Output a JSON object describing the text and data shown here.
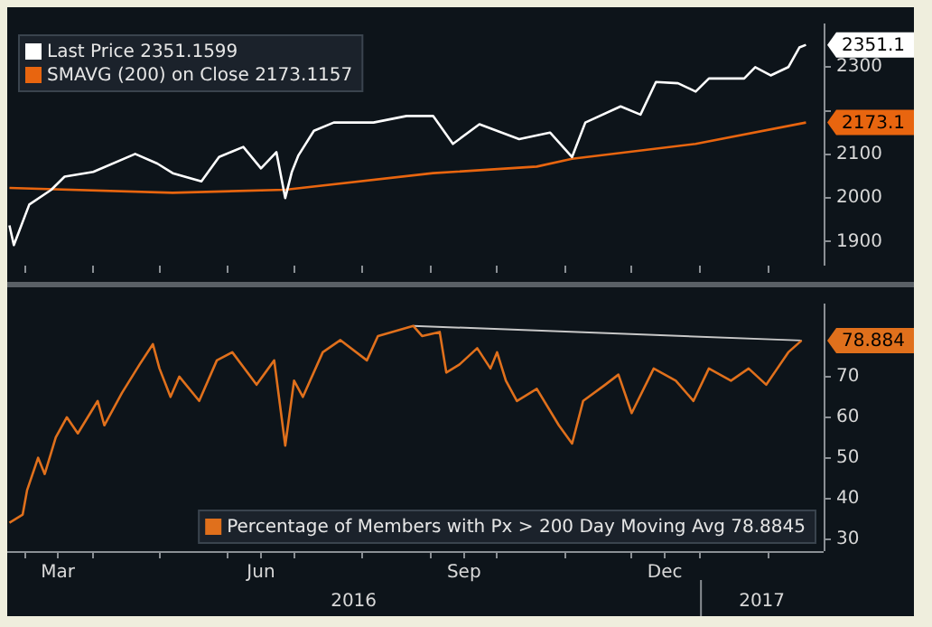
{
  "chart_data": [
    {
      "type": "line",
      "legend": "top left",
      "marker": "none",
      "line_style": "solid",
      "tick_labels": "y",
      "xlim": [
        "2016-02-22",
        "2017-02-26"
      ],
      "xticks": [
        {
          "value": "2016-03-01",
          "label": null
        },
        {
          "value": "2016-04-01",
          "label": null
        },
        {
          "value": "2016-05-01",
          "label": null
        },
        {
          "value": "2016-06-01",
          "label": null
        },
        {
          "value": "2016-07-01",
          "label": null
        },
        {
          "value": "2016-08-01",
          "label": null
        },
        {
          "value": "2016-09-01",
          "label": null
        },
        {
          "value": "2016-10-01",
          "label": null
        },
        {
          "value": "2016-11-01",
          "label": null
        },
        {
          "value": "2016-12-01",
          "label": null
        },
        {
          "value": "2017-01-01",
          "label": null
        },
        {
          "value": "2017-02-01",
          "label": null
        }
      ],
      "ylim": [
        1845,
        2400
      ],
      "yticks": [
        1900,
        2000,
        2100,
        {
          "value": 2200,
          "label": null
        },
        2300
      ],
      "annotations": [
        {
          "text": "2351.1",
          "x": "2017-02-18",
          "y": 2351
        },
        {
          "text": "2173.1",
          "x": "2017-02-18",
          "y": 2173
        }
      ],
      "x": [
        "2016-02-23",
        "2016-02-25",
        "2016-03-03",
        "2016-03-13",
        "2016-03-19",
        "2016-04-01",
        "2016-04-20",
        "2016-04-30",
        "2016-05-07",
        "2016-05-20",
        "2016-05-28",
        "2016-06-08",
        "2016-06-16",
        "2016-06-23",
        "2016-06-27",
        "2016-06-30",
        "2016-07-03",
        "2016-07-10",
        "2016-07-19",
        "2016-08-06",
        "2016-08-21",
        "2016-09-02",
        "2016-09-11",
        "2016-09-23",
        "2016-10-11",
        "2016-10-25",
        "2016-11-04",
        "2016-11-10",
        "2016-11-26",
        "2016-12-05",
        "2016-12-12",
        "2016-12-22",
        "2016-12-30",
        "2017-01-05",
        "2017-01-21",
        "2017-01-26",
        "2017-02-02",
        "2017-02-10",
        "2017-02-15",
        "2017-02-18"
      ],
      "series": [
        {
          "name": "Last Price 2351.1599",
          "color": "#ffffff",
          "values": [
            1937,
            1892,
            1985,
            2019,
            2049,
            2060,
            2101,
            2079,
            2057,
            2038,
            2094,
            2117,
            2068,
            2105,
            2000,
            2060,
            2098,
            2154,
            2173,
            2173,
            2188,
            2188,
            2124,
            2169,
            2135,
            2150,
            2094,
            2173,
            2210,
            2191,
            2266,
            2263,
            2244,
            2274,
            2274,
            2300,
            2281,
            2300,
            2345,
            2351
          ]
        },
        {
          "name": "SMAVG (200) on Close 2173.1157",
          "color": "#e8650f",
          "x": [
            "2016-02-23",
            "2016-05-07",
            "2016-06-27",
            "2016-09-02",
            "2016-10-19",
            "2016-11-04",
            "2016-12-30",
            "2017-02-18"
          ],
          "values": [
            2023,
            2012,
            2019,
            2057,
            2072,
            2090,
            2124,
            2173
          ]
        }
      ]
    },
    {
      "type": "line",
      "legend": "bottom right",
      "marker": "none",
      "line_style": "solid",
      "xlim": [
        "2016-02-22",
        "2017-02-26"
      ],
      "xticks": [
        {
          "value": "2016-03-01",
          "label": null
        },
        {
          "value": "2016-03-16",
          "label": "Mar"
        },
        {
          "value": "2016-04-01",
          "label": null
        },
        {
          "value": "2016-05-01",
          "label": null
        },
        {
          "value": "2016-06-01",
          "label": null
        },
        {
          "value": "2016-06-16",
          "label": "Jun"
        },
        {
          "value": "2016-07-01",
          "label": null
        },
        {
          "value": "2016-08-01",
          "label": null
        },
        {
          "value": "2016-09-01",
          "label": null
        },
        {
          "value": "2016-09-16",
          "label": "Sep"
        },
        {
          "value": "2016-10-01",
          "label": null
        },
        {
          "value": "2016-11-01",
          "label": null
        },
        {
          "value": "2016-12-01",
          "label": null
        },
        {
          "value": "2016-12-16",
          "label": "Dec"
        },
        {
          "value": "2017-01-01",
          "label": null
        },
        {
          "value": "2017-02-01",
          "label": null
        }
      ],
      "ylim": [
        27,
        88
      ],
      "yticks": [
        30,
        40,
        50,
        60,
        70
      ],
      "annotations": [
        "2016",
        "2017",
        {
          "text": "78.884",
          "x": "2017-02-16",
          "y": 78.9
        }
      ],
      "x": [
        "2016-02-23",
        "2016-02-29",
        "2016-03-02",
        "2016-03-07",
        "2016-03-10",
        "2016-03-15",
        "2016-03-20",
        "2016-03-25",
        "2016-04-03",
        "2016-04-06",
        "2016-04-14",
        "2016-04-22",
        "2016-04-28",
        "2016-05-01",
        "2016-05-06",
        "2016-05-10",
        "2016-05-19",
        "2016-05-27",
        "2016-06-03",
        "2016-06-14",
        "2016-06-22",
        "2016-06-27",
        "2016-07-01",
        "2016-07-05",
        "2016-07-14",
        "2016-07-22",
        "2016-08-03",
        "2016-08-08",
        "2016-08-24",
        "2016-08-28",
        "2016-09-05",
        "2016-09-08",
        "2016-09-14",
        "2016-09-22",
        "2016-09-28",
        "2016-10-01",
        "2016-10-05",
        "2016-10-10",
        "2016-10-19",
        "2016-10-29",
        "2016-11-04",
        "2016-11-09",
        "2016-11-19",
        "2016-11-25",
        "2016-12-01",
        "2016-12-11",
        "2016-12-21",
        "2016-12-29",
        "2017-01-05",
        "2017-01-15",
        "2017-01-23",
        "2017-01-31",
        "2017-02-05",
        "2017-02-10",
        "2017-02-16"
      ],
      "series": [
        {
          "name": "Percentage of Members with Px > 200 Day Moving Avg 78.8845",
          "color": "#e0701c",
          "values": [
            34,
            36,
            42,
            50,
            46,
            55,
            60,
            56,
            64,
            58,
            66,
            73,
            78,
            72,
            65,
            70,
            64,
            74,
            76,
            68,
            74,
            53,
            69,
            65,
            76,
            79,
            74,
            80,
            82.5,
            80,
            81,
            71,
            73,
            77,
            72,
            76,
            69,
            64,
            67,
            58,
            53.5,
            64,
            68,
            70.5,
            61,
            72,
            69,
            64,
            72,
            69,
            72,
            68,
            72,
            76,
            78.9
          ]
        },
        {
          "type": "line",
          "color": "#c8c8c8",
          "x": [
            "2016-08-24",
            "2017-02-16"
          ],
          "values": [
            82.5,
            78.9
          ]
        }
      ]
    }
  ]
}
